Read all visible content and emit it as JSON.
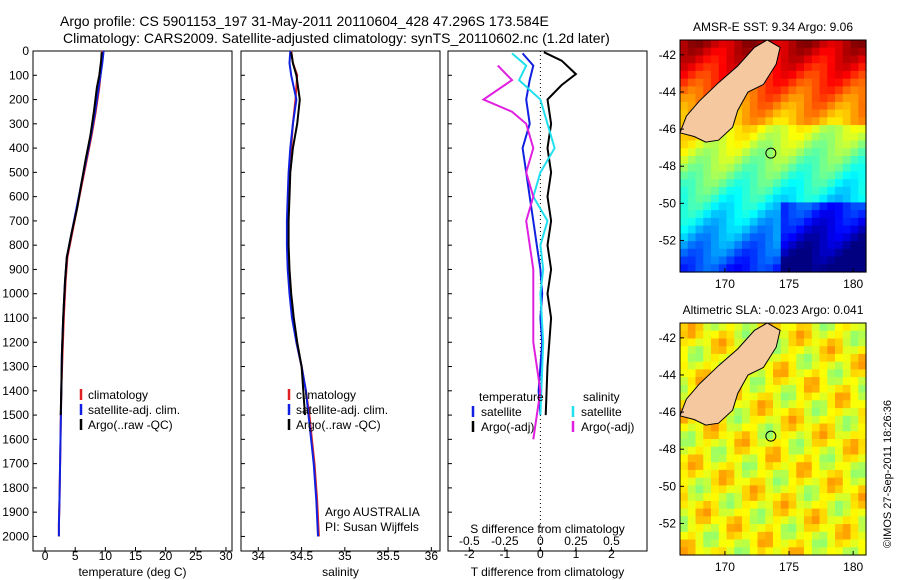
{
  "header": {
    "title_line1": "Argo profile: CS 5901153_197 31-May-2011 20110604_428 47.296S 173.584E",
    "title_line2": "Climatology: CARS2009. Satellite-adjusted climatology: synTS_20110602.nc (1.2d later)"
  },
  "footer": {
    "credit": "©IMOS 27-Sep-2011 18:26:36",
    "argo_note_1": "Argo AUSTRALIA",
    "argo_note_2": "PI: Susan Wijffels"
  },
  "colors": {
    "climatology": "#e02020",
    "satellite": "#1020e0",
    "argo": "#000000",
    "salinity_satellite": "#20e0f0",
    "salinity_argo": "#e020e0",
    "land": "#f5c8a0"
  },
  "chart_data": [
    {
      "type": "line",
      "panel": "temperature",
      "xlabel": "temperature (deg C)",
      "ylabel": "",
      "xlim": [
        -2,
        31
      ],
      "ylim": [
        2060,
        0
      ],
      "x_ticks": [
        0,
        5,
        10,
        15,
        20,
        25,
        30
      ],
      "y_ticks": [
        0,
        100,
        200,
        300,
        400,
        500,
        600,
        700,
        800,
        900,
        1000,
        1100,
        1200,
        1300,
        1400,
        1500,
        1600,
        1700,
        1800,
        1900,
        2000
      ],
      "legend": [
        "climatology",
        "satellite-adj. clim.",
        "Argo(..raw -QC)"
      ],
      "legend_position": "lower-center",
      "series": [
        {
          "name": "climatology",
          "color": "#e02020",
          "x": [
            9.5,
            9.4,
            9.2,
            9.0,
            8.4,
            7.7,
            6.9,
            6.1,
            5.3,
            4.5,
            3.7,
            3.4,
            3.1,
            2.9,
            2.7,
            2.6,
            2.5,
            2.4,
            2.3,
            2.3
          ],
          "y": [
            0,
            50,
            100,
            150,
            250,
            350,
            450,
            550,
            650,
            750,
            850,
            950,
            1100,
            1250,
            1400,
            1550,
            1700,
            1850,
            1950,
            2000
          ]
        },
        {
          "name": "satellite-adj. clim.",
          "color": "#1020e0",
          "x": [
            9.7,
            9.5,
            9.2,
            8.9,
            8.3,
            7.6,
            6.8,
            6.0,
            5.2,
            4.4,
            3.6,
            3.3,
            3.0,
            2.8,
            2.7,
            2.6,
            2.5,
            2.4,
            2.3,
            2.3
          ],
          "y": [
            0,
            50,
            100,
            150,
            250,
            350,
            450,
            550,
            650,
            750,
            850,
            950,
            1100,
            1250,
            1400,
            1550,
            1700,
            1850,
            1950,
            2000
          ]
        },
        {
          "name": "Argo(..raw -QC)",
          "color": "#000000",
          "x": [
            9.4,
            9.3,
            9.0,
            8.6,
            8.1,
            7.5,
            6.7,
            6.0,
            5.3,
            4.4,
            3.6,
            3.3,
            3.0,
            2.8,
            2.7,
            2.6
          ],
          "y": [
            5,
            40,
            100,
            150,
            250,
            350,
            450,
            550,
            650,
            750,
            850,
            950,
            1100,
            1250,
            1400,
            1500
          ]
        }
      ]
    },
    {
      "type": "line",
      "panel": "salinity",
      "xlabel": "salinity",
      "ylabel": "",
      "xlim": [
        33.8,
        36.1
      ],
      "ylim": [
        2060,
        0
      ],
      "x_ticks": [
        34,
        34.5,
        35,
        35.5,
        36
      ],
      "legend": [
        "climatology",
        "satellite-adj. clim.",
        "Argo(..raw -QC)"
      ],
      "legend_position": "lower-center",
      "series": [
        {
          "name": "climatology",
          "color": "#e02020",
          "x": [
            34.38,
            34.4,
            34.45,
            34.43,
            34.4,
            34.38,
            34.36,
            34.35,
            34.34,
            34.34,
            34.35,
            34.37,
            34.4,
            34.44,
            34.5,
            34.55,
            34.59,
            34.62,
            34.65,
            34.68,
            34.7
          ],
          "y": [
            0,
            50,
            100,
            200,
            300,
            400,
            500,
            600,
            700,
            800,
            900,
            1000,
            1100,
            1200,
            1300,
            1400,
            1500,
            1600,
            1700,
            1850,
            2000
          ]
        },
        {
          "name": "satellite-adj. clim.",
          "color": "#1020e0",
          "x": [
            34.37,
            34.36,
            34.38,
            34.44,
            34.4,
            34.37,
            34.35,
            34.34,
            34.33,
            34.33,
            34.34,
            34.36,
            34.39,
            34.44,
            34.5,
            34.55,
            34.58,
            34.61,
            34.64,
            34.67,
            34.69
          ],
          "y": [
            0,
            50,
            100,
            200,
            300,
            400,
            500,
            600,
            700,
            800,
            900,
            1000,
            1100,
            1200,
            1300,
            1400,
            1500,
            1600,
            1700,
            1850,
            2000
          ]
        },
        {
          "name": "Argo(..raw -QC)",
          "color": "#000000",
          "x": [
            34.38,
            34.4,
            34.44,
            34.48,
            34.45,
            34.4,
            34.37,
            34.36,
            34.35,
            34.35,
            34.36,
            34.38,
            34.41,
            34.45,
            34.5,
            34.54
          ],
          "y": [
            5,
            50,
            100,
            200,
            300,
            400,
            500,
            600,
            700,
            800,
            900,
            1000,
            1100,
            1200,
            1300,
            1500
          ]
        }
      ]
    },
    {
      "type": "line",
      "panel": "difference",
      "xlabel": "T difference from climatology",
      "xlabel_top": "S difference from climatology",
      "ylabel": "",
      "xlim": [
        -2.6,
        3.0
      ],
      "ylim": [
        2060,
        0
      ],
      "x_ticks": [
        -2,
        -1,
        0,
        1,
        2
      ],
      "x_ticks_salinity": [
        "-0.5",
        "-0.25",
        "0",
        "0.25",
        "0.5"
      ],
      "legend_temperature_title": "temperature",
      "legend_salinity_title": "salinity",
      "legend": [
        "satellite",
        "Argo(-adj)",
        "satellite",
        "Argo(-adj)"
      ],
      "legend_position": "lower-center",
      "series": [
        {
          "name": "satellite",
          "group": "temperature",
          "color": "#1020e0",
          "x": [
            -0.5,
            -0.2,
            -0.3,
            -0.4,
            -0.3,
            -0.5,
            -0.4,
            -0.3,
            -0.2,
            -0.1,
            0,
            0.05,
            0,
            0.05,
            0,
            -0.05,
            0
          ],
          "y": [
            10,
            60,
            120,
            200,
            300,
            400,
            500,
            600,
            700,
            800,
            900,
            1000,
            1100,
            1200,
            1300,
            1400,
            1500
          ]
        },
        {
          "name": "Argo(-adj)",
          "group": "temperature",
          "color": "#000000",
          "x": [
            0.1,
            0.6,
            1.0,
            0.6,
            0.2,
            0.3,
            0.2,
            0.3,
            0.2,
            0.3,
            0.2,
            0.3,
            0.2,
            0.3,
            0.2,
            0.15
          ],
          "y": [
            5,
            40,
            95,
            140,
            200,
            300,
            400,
            500,
            600,
            700,
            800,
            900,
            1000,
            1100,
            1300,
            1500
          ]
        },
        {
          "name": "satellite",
          "group": "salinity",
          "color": "#20e0f0",
          "x": [
            -0.2,
            -0.1,
            -0.15,
            0.0,
            0.05,
            0.1,
            0.0,
            -0.05,
            0.05,
            0.0,
            0.02,
            0.0,
            0.02,
            0.0
          ],
          "y": [
            10,
            60,
            120,
            200,
            300,
            400,
            500,
            600,
            700,
            800,
            900,
            1000,
            1200,
            1500
          ]
        },
        {
          "name": "Argo(-adj)",
          "group": "salinity",
          "color": "#e020e0",
          "x": [
            -0.3,
            -0.2,
            -0.4,
            -0.2,
            -0.1,
            -0.05,
            -0.1,
            -0.05,
            -0.1,
            -0.05,
            -0.05,
            -0.05,
            0.0,
            -0.05
          ],
          "y": [
            60,
            120,
            200,
            250,
            300,
            400,
            500,
            600,
            700,
            900,
            1000,
            1200,
            1400,
            1600
          ]
        }
      ]
    },
    {
      "type": "heatmap",
      "panel": "map-sst",
      "title": "AMSR-E SST: 9.34 Argo: 9.06",
      "xlim": [
        166.5,
        181
      ],
      "ylim": [
        -53.7,
        -41.2
      ],
      "x_ticks": [
        170,
        175,
        180
      ],
      "y_ticks": [
        -42,
        -44,
        -46,
        -48,
        -50,
        -52
      ],
      "argo_location": {
        "lon": 173.584,
        "lat": -47.296
      },
      "colormap": "jet"
    },
    {
      "type": "heatmap",
      "panel": "map-sla",
      "title": "Altimetric SLA: -0.023 Argo: 0.041",
      "xlim": [
        166.5,
        181
      ],
      "ylim": [
        -53.7,
        -41.2
      ],
      "x_ticks": [
        170,
        175,
        180
      ],
      "y_ticks": [
        -42,
        -44,
        -46,
        -48,
        -50,
        -52
      ],
      "argo_location": {
        "lon": 173.584,
        "lat": -47.296
      },
      "colormap": "jet"
    }
  ]
}
